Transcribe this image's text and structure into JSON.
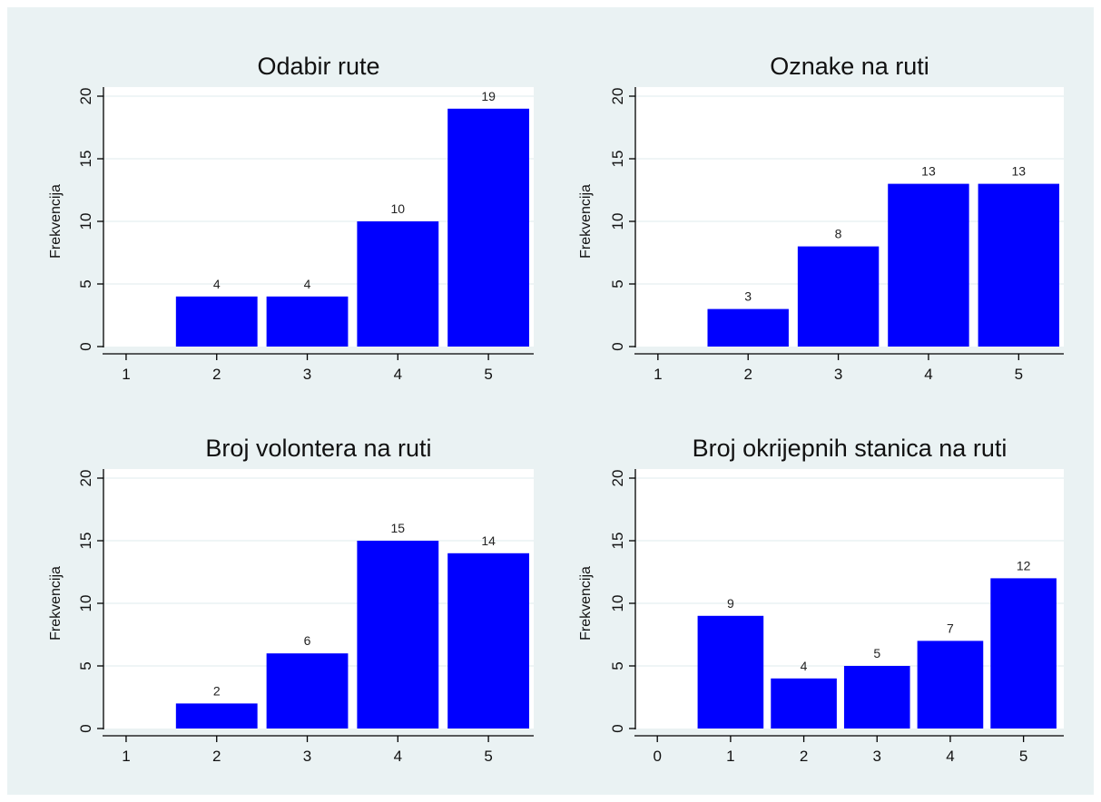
{
  "colors": {
    "figure_background": "#eaf2f3",
    "plot_background": "#ffffff",
    "bar_fill": "#0000ff",
    "gridline": "#eaf2f3",
    "axis": "#000000"
  },
  "chart_data": [
    {
      "type": "bar",
      "title": "Odabir rute",
      "ylabel": "Frekvencija",
      "xlabel": "",
      "categories": [
        1,
        2,
        3,
        4,
        5
      ],
      "values": [
        0,
        4,
        4,
        10,
        19
      ],
      "value_labels": [
        "",
        "4",
        "4",
        "10",
        "19"
      ],
      "xticks": [
        "1",
        "2",
        "3",
        "4",
        "5"
      ],
      "yticks": [
        "0",
        "5",
        "10",
        "15",
        "20"
      ],
      "xlim": [
        0.75,
        5.5
      ],
      "ylim": [
        0,
        20
      ],
      "grid": true
    },
    {
      "type": "bar",
      "title": "Oznake na ruti",
      "ylabel": "Frekvencija",
      "xlabel": "",
      "categories": [
        1,
        2,
        3,
        4,
        5
      ],
      "values": [
        0,
        3,
        8,
        13,
        13
      ],
      "value_labels": [
        "",
        "3",
        "8",
        "13",
        "13"
      ],
      "xticks": [
        "1",
        "2",
        "3",
        "4",
        "5"
      ],
      "yticks": [
        "0",
        "5",
        "10",
        "15",
        "20"
      ],
      "xlim": [
        0.75,
        5.5
      ],
      "ylim": [
        0,
        20
      ],
      "grid": true
    },
    {
      "type": "bar",
      "title": "Broj volontera na ruti",
      "ylabel": "Frekvencija",
      "xlabel": "",
      "categories": [
        1,
        2,
        3,
        4,
        5
      ],
      "values": [
        0,
        2,
        6,
        15,
        14
      ],
      "value_labels": [
        "",
        "2",
        "6",
        "15",
        "14"
      ],
      "xticks": [
        "1",
        "2",
        "3",
        "4",
        "5"
      ],
      "yticks": [
        "0",
        "5",
        "10",
        "15",
        "20"
      ],
      "xlim": [
        0.75,
        5.5
      ],
      "ylim": [
        0,
        20
      ],
      "grid": true
    },
    {
      "type": "bar",
      "title": "Broj okrijepnih stanica na ruti",
      "ylabel": "Frekvencija",
      "xlabel": "",
      "categories": [
        0,
        1,
        2,
        3,
        4,
        5
      ],
      "values": [
        0,
        9,
        4,
        5,
        7,
        12
      ],
      "value_labels": [
        "",
        "9",
        "4",
        "5",
        "7",
        "12"
      ],
      "xticks": [
        "0",
        "1",
        "2",
        "3",
        "4",
        "5"
      ],
      "yticks": [
        "0",
        "5",
        "10",
        "15",
        "20"
      ],
      "xlim": [
        -0.3,
        5.55
      ],
      "ylim": [
        0,
        20
      ],
      "grid": true
    }
  ]
}
